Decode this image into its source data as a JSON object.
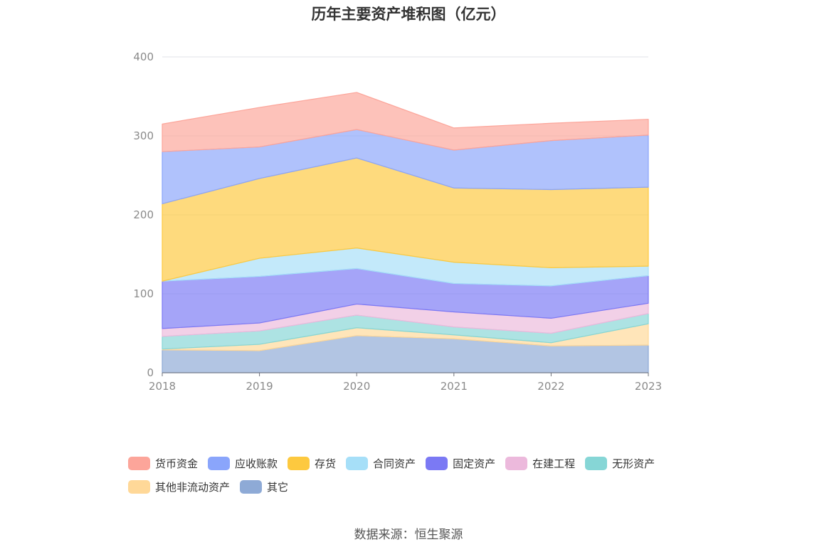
{
  "chart_data": {
    "type": "area",
    "stacked": true,
    "title": "历年主要资产堆积图（亿元）",
    "xlabel": "",
    "ylabel": "",
    "x": [
      "2018",
      "2019",
      "2020",
      "2021",
      "2022",
      "2023"
    ],
    "ylim": [
      0,
      400
    ],
    "yticks": [
      0,
      100,
      200,
      300,
      400
    ],
    "grid": true,
    "legend_position": "bottom",
    "series": [
      {
        "name": "其它",
        "color": "#8eaad6",
        "values": [
          29,
          28,
          47,
          43,
          34,
          35
        ]
      },
      {
        "name": "其他非流动资产",
        "color": "#ffd898",
        "values": [
          1,
          8,
          10,
          5,
          4,
          27
        ]
      },
      {
        "name": "无形资产",
        "color": "#86d6d6",
        "values": [
          16,
          17,
          16,
          10,
          12,
          13
        ]
      },
      {
        "name": "在建工程",
        "color": "#ecb9dc",
        "values": [
          10,
          10,
          14,
          19,
          19,
          13
        ]
      },
      {
        "name": "固定资产",
        "color": "#7b79f4",
        "values": [
          60,
          59,
          45,
          36,
          41,
          35
        ]
      },
      {
        "name": "合同资产",
        "color": "#a6dff8",
        "values": [
          0,
          23,
          26,
          27,
          23,
          12
        ]
      },
      {
        "name": "存货",
        "color": "#fdc93f",
        "values": [
          98,
          101,
          114,
          94,
          99,
          100
        ]
      },
      {
        "name": "应收账款",
        "color": "#8aa5fb",
        "values": [
          66,
          40,
          36,
          48,
          62,
          66
        ]
      },
      {
        "name": "货币资金",
        "color": "#fca59a",
        "values": [
          35,
          50,
          47,
          28,
          22,
          20
        ]
      }
    ],
    "legend_order": [
      "货币资金",
      "应收账款",
      "存货",
      "合同资产",
      "固定资产",
      "在建工程",
      "无形资产",
      "其他非流动资产",
      "其它"
    ]
  },
  "source_note": "数据来源：恒生聚源"
}
